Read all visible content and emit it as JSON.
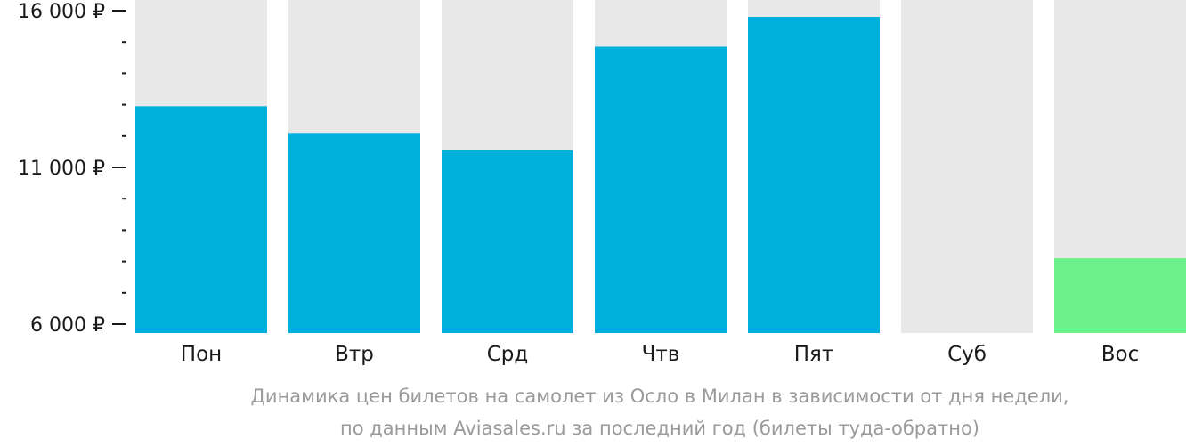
{
  "chart_data": {
    "type": "bar",
    "categories": [
      "Пон",
      "Втр",
      "Срд",
      "Чтв",
      "Пят",
      "Суб",
      "Вос"
    ],
    "values": [
      12950,
      12100,
      11550,
      14850,
      15800,
      null,
      8100
    ],
    "ylim": [
      6000,
      16000
    ],
    "ytick_values": [
      6000,
      11000,
      16000
    ],
    "ytick_labels": [
      "6 000 ₽",
      "11 000 ₽",
      "16 000 ₽"
    ],
    "minor_ticks_between": 4,
    "bar_color": "#00b0dc",
    "highlight_color": "#6cf08a",
    "highlight_category": "Вос",
    "background_bar_color": "#e8e8e8",
    "tick_color": "#1a1a1a",
    "caption_lines": [
      "Динамика цен билетов на самолет из Осло в Милан в зависимости от дня недели,",
      "по данным Aviasales.ru за последний год (билеты туда-обратно)"
    ]
  }
}
